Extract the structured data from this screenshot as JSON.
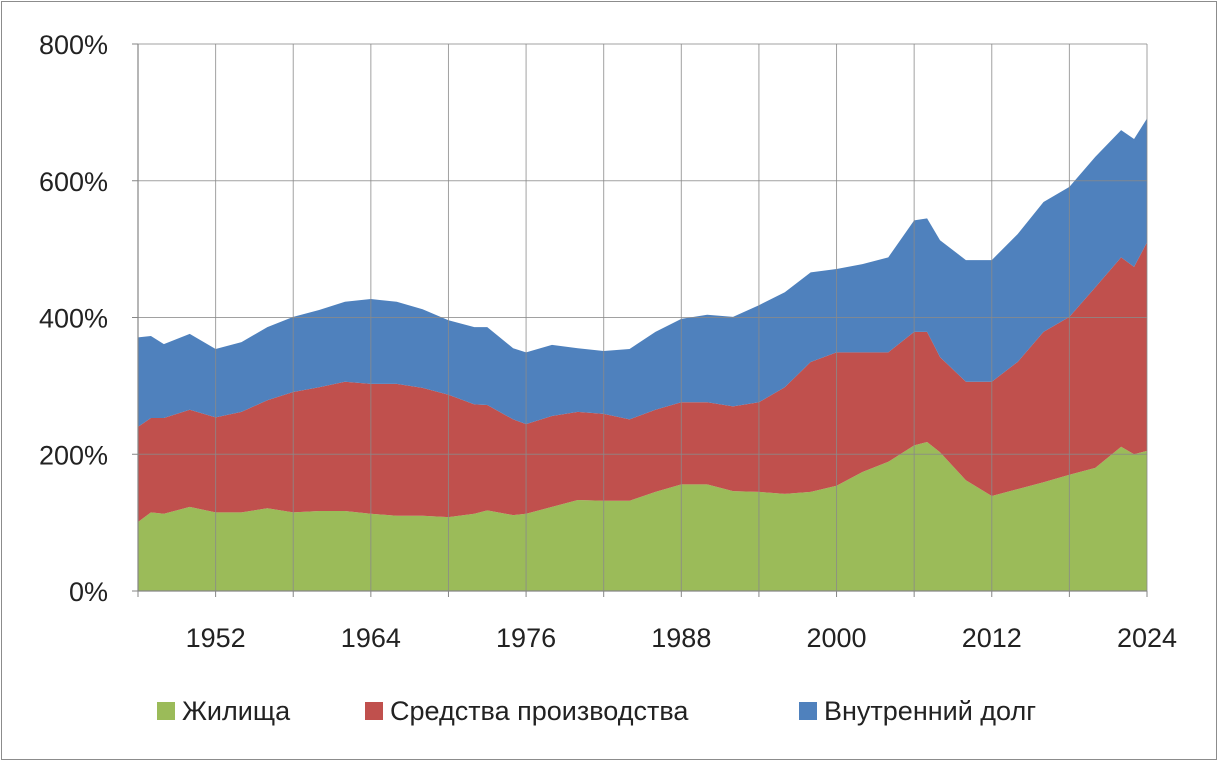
{
  "chart_data": {
    "type": "area",
    "stacked": true,
    "title": "",
    "xlabel": "",
    "ylabel": "",
    "xlim": [
      1946,
      2024
    ],
    "ylim": [
      0,
      800
    ],
    "y_ticks": [
      0,
      200,
      400,
      600,
      800
    ],
    "y_tick_labels": [
      "0%",
      "200%",
      "400%",
      "600%",
      "800%"
    ],
    "x_ticks": [
      1952,
      1964,
      1976,
      1988,
      2000,
      2012,
      2024
    ],
    "x_tick_labels": [
      "1952",
      "1964",
      "1976",
      "1988",
      "2000",
      "2012",
      "2024"
    ],
    "grid": true,
    "legend_position": "bottom",
    "x": [
      1946,
      1947,
      1948,
      1950,
      1952,
      1954,
      1956,
      1958,
      1960,
      1962,
      1964,
      1966,
      1968,
      1970,
      1972,
      1973,
      1975,
      1976,
      1978,
      1980,
      1982,
      1984,
      1986,
      1988,
      1990,
      1992,
      1994,
      1996,
      1998,
      2000,
      2002,
      2004,
      2006,
      2007,
      2008,
      2010,
      2012,
      2014,
      2016,
      2018,
      2020,
      2022,
      2023,
      2024
    ],
    "series": [
      {
        "name": "Жилища",
        "color": "#9bbb59",
        "values": [
          101,
          115,
          113,
          123,
          115,
          115,
          121,
          115,
          117,
          117,
          113,
          110,
          110,
          108,
          113,
          118,
          111,
          113,
          123,
          133,
          132,
          132,
          145,
          156,
          156,
          146,
          145,
          142,
          145,
          154,
          174,
          189,
          213,
          218,
          203,
          162,
          139,
          149,
          159,
          170,
          180,
          211,
          200,
          205
        ]
      },
      {
        "name": "Средства производства",
        "color": "#c0504d",
        "values": [
          139,
          138,
          140,
          142,
          139,
          147,
          158,
          176,
          181,
          189,
          190,
          193,
          187,
          179,
          160,
          154,
          140,
          131,
          133,
          129,
          127,
          119,
          120,
          120,
          120,
          124,
          131,
          156,
          190,
          195,
          175,
          160,
          166,
          161,
          139,
          144,
          167,
          186,
          220,
          231,
          264,
          277,
          274,
          305
        ]
      },
      {
        "name": "Внутренний долг",
        "color": "#4f81bd",
        "values": [
          131,
          120,
          108,
          111,
          100,
          102,
          107,
          110,
          113,
          117,
          124,
          120,
          115,
          109,
          113,
          114,
          104,
          105,
          104,
          93,
          92,
          103,
          114,
          122,
          128,
          131,
          142,
          139,
          131,
          122,
          129,
          139,
          163,
          166,
          171,
          178,
          178,
          187,
          190,
          190,
          191,
          186,
          187,
          181
        ]
      }
    ]
  }
}
